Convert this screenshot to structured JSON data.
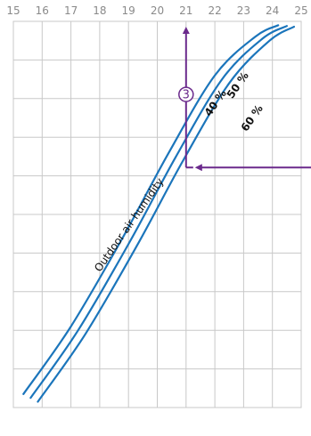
{
  "chart_data": {
    "type": "line",
    "x_ticks": [
      "15",
      "16",
      "17",
      "18",
      "19",
      "20",
      "21",
      "22",
      "23",
      "24",
      "25"
    ],
    "x_range": [
      15,
      25
    ],
    "rows": 9,
    "grid": true,
    "series_label": "Outdoor air humidity",
    "series": [
      {
        "name": "40 %",
        "points": [
          [
            15.35,
            0.965
          ],
          [
            17.0,
            0.79
          ],
          [
            18.8,
            0.56
          ],
          [
            20.4,
            0.34
          ],
          [
            22.0,
            0.14
          ],
          [
            23.4,
            0.04
          ],
          [
            24.2,
            0.01
          ]
        ]
      },
      {
        "name": "50 %",
        "points": [
          [
            15.6,
            0.975
          ],
          [
            17.25,
            0.8
          ],
          [
            19.05,
            0.57
          ],
          [
            20.65,
            0.35
          ],
          [
            22.25,
            0.15
          ],
          [
            23.65,
            0.045
          ],
          [
            24.5,
            0.012
          ]
        ]
      },
      {
        "name": "60 %",
        "points": [
          [
            15.85,
            0.985
          ],
          [
            17.5,
            0.81
          ],
          [
            19.3,
            0.58
          ],
          [
            20.9,
            0.36
          ],
          [
            22.5,
            0.16
          ],
          [
            23.9,
            0.05
          ],
          [
            24.75,
            0.014
          ]
        ]
      }
    ],
    "annotation": {
      "marker": "3",
      "x": 21,
      "y_fraction": 0.36
    }
  },
  "colors": {
    "curve": "#1b75bb",
    "arrow": "#6b2a8c",
    "grid": "#c8c8c8",
    "tick": "#8a8a8a"
  }
}
